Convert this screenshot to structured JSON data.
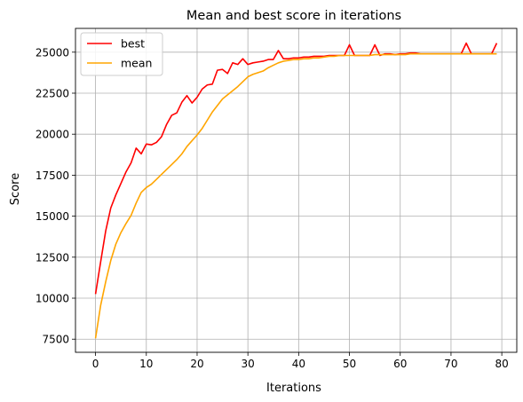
{
  "chart_data": {
    "type": "line",
    "title": "Mean and best score in iterations",
    "xlabel": "Iterations",
    "ylabel": "Score",
    "xlim": [
      -3.95,
      82.95
    ],
    "ylim": [
      6700,
      26450
    ],
    "xticks": [
      0,
      10,
      20,
      30,
      40,
      50,
      60,
      70,
      80
    ],
    "yticks": [
      7500,
      10000,
      12500,
      15000,
      17500,
      20000,
      22500,
      25000
    ],
    "grid": true,
    "legend_position": "top-left",
    "series": [
      {
        "name": "best",
        "color": "#ff0000",
        "x": [
          0,
          1,
          2,
          3,
          4,
          5,
          6,
          7,
          8,
          9,
          10,
          11,
          12,
          13,
          14,
          15,
          16,
          17,
          18,
          19,
          20,
          21,
          22,
          23,
          24,
          25,
          26,
          27,
          28,
          29,
          30,
          31,
          32,
          33,
          34,
          35,
          36,
          37,
          38,
          39,
          40,
          41,
          42,
          43,
          44,
          45,
          46,
          47,
          48,
          49,
          50,
          51,
          52,
          53,
          54,
          55,
          56,
          57,
          58,
          59,
          60,
          61,
          62,
          63,
          64,
          65,
          66,
          67,
          68,
          69,
          70,
          71,
          72,
          73,
          74,
          75,
          76,
          77,
          78,
          79
        ],
        "values": [
          10250,
          12200,
          14100,
          15500,
          16300,
          17000,
          17700,
          18250,
          19150,
          18800,
          19400,
          19350,
          19500,
          19850,
          20600,
          21150,
          21300,
          21950,
          22350,
          21900,
          22250,
          22750,
          23000,
          23050,
          23900,
          23950,
          23700,
          24350,
          24250,
          24600,
          24250,
          24350,
          24400,
          24450,
          24550,
          24550,
          25100,
          24600,
          24600,
          24650,
          24650,
          24700,
          24700,
          24750,
          24750,
          24750,
          24800,
          24800,
          24800,
          24800,
          25450,
          24800,
          24800,
          24800,
          24800,
          25450,
          24800,
          24900,
          24900,
          24850,
          24900,
          24900,
          24950,
          24950,
          24900,
          24900,
          24900,
          24900,
          24900,
          24900,
          24900,
          24900,
          24900,
          25550,
          24900,
          24900,
          24900,
          24900,
          24900,
          25550
        ]
      },
      {
        "name": "mean",
        "color": "#ffa500",
        "x": [
          0,
          1,
          2,
          3,
          4,
          5,
          6,
          7,
          8,
          9,
          10,
          11,
          12,
          13,
          14,
          15,
          16,
          17,
          18,
          19,
          20,
          21,
          22,
          23,
          24,
          25,
          26,
          27,
          28,
          29,
          30,
          31,
          32,
          33,
          34,
          35,
          36,
          37,
          38,
          39,
          40,
          41,
          42,
          43,
          44,
          45,
          46,
          47,
          48,
          49,
          50,
          51,
          52,
          53,
          54,
          55,
          56,
          57,
          58,
          59,
          60,
          61,
          62,
          63,
          64,
          65,
          66,
          67,
          68,
          69,
          70,
          71,
          72,
          73,
          74,
          75,
          76,
          77,
          78,
          79
        ],
        "values": [
          7550,
          9550,
          11000,
          12300,
          13300,
          14000,
          14550,
          15050,
          15800,
          16450,
          16750,
          16950,
          17250,
          17550,
          17850,
          18150,
          18450,
          18800,
          19250,
          19600,
          19950,
          20350,
          20850,
          21350,
          21750,
          22150,
          22400,
          22650,
          22900,
          23200,
          23500,
          23650,
          23750,
          23850,
          24050,
          24200,
          24350,
          24450,
          24500,
          24550,
          24550,
          24600,
          24600,
          24650,
          24650,
          24700,
          24750,
          24750,
          24800,
          24800,
          24800,
          24800,
          24800,
          24800,
          24800,
          24850,
          24850,
          24850,
          24850,
          24850,
          24850,
          24850,
          24900,
          24900,
          24900,
          24900,
          24900,
          24900,
          24900,
          24900,
          24900,
          24900,
          24900,
          24900,
          24900,
          24900,
          24900,
          24900,
          24900,
          24900
        ]
      }
    ]
  }
}
